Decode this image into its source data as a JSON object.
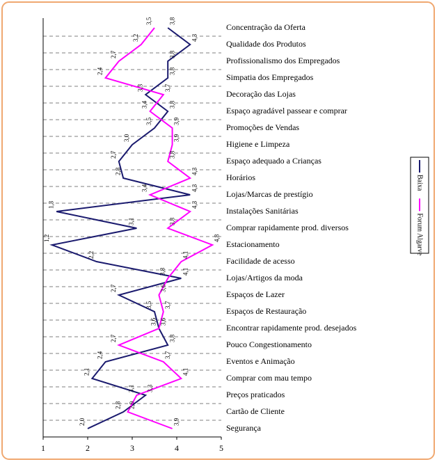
{
  "chart_data": {
    "type": "line",
    "categories": [
      "Concentração da Oferta",
      "Qualidade dos Produtos",
      "Profissionalismo dos Empregados",
      "Simpatia dos Empregados",
      "Decoração das Lojas",
      "Espaço agradável passear e comprar",
      "Promoções de Vendas",
      "Higiene e Limpeza",
      "Espaço adequado a Crianças",
      "Horários",
      "Lojas/Marcas de prestígio",
      "Instalações Sanitárias",
      "Comprar rapidamente prod. diversos",
      "Estacionamento",
      "Facilidade de acesso",
      "Lojas/Artigos da moda",
      "Espaços de Lazer",
      "Espaços de Restauração",
      "Encontrar rapidamente prod. desejados",
      "Pouco Congestionamento",
      "Eventos e Animação",
      "Comprar com mau tempo",
      "Preços praticados",
      "Cartão de Cliente",
      "Segurança"
    ],
    "series": [
      {
        "name": "Baixa",
        "color": "#1a1a6e",
        "values": [
          3.8,
          4.3,
          3.8,
          3.8,
          3.3,
          3.8,
          3.5,
          3.0,
          2.7,
          2.8,
          4.3,
          1.3,
          3.1,
          1.2,
          2.2,
          4.1,
          2.7,
          3.5,
          3.6,
          3.8,
          2.4,
          2.1,
          3.3,
          2.8,
          2.0
        ],
        "value_labels": [
          "3,8",
          "4,3",
          "3,8",
          "3,8",
          "3,3",
          "3,8",
          "3,5",
          "3,0",
          "2,7",
          "2,8",
          "4,3",
          "1,3",
          "3,1",
          "1,2",
          "2,2",
          "4,1",
          "2,7",
          "3,5",
          "3,6",
          "3,8",
          "2,4",
          "2,1",
          "3,3",
          "2,8",
          "2,0"
        ]
      },
      {
        "name": "Forum Algarve",
        "color": "#ff00ff",
        "values": [
          3.5,
          3.2,
          2.7,
          2.4,
          3.7,
          3.4,
          3.9,
          3.9,
          3.8,
          4.3,
          3.4,
          4.3,
          3.8,
          4.8,
          4.1,
          3.8,
          3.6,
          3.7,
          3.6,
          2.7,
          3.7,
          4.1,
          3.1,
          2.9,
          3.9
        ],
        "value_labels": [
          "3,5",
          "3,2",
          "2,7",
          "2,4",
          "3,7",
          "3,4",
          "3,9",
          "3,9",
          "3,8",
          "4,3",
          "3,4",
          "4,3",
          "3,8",
          "4,8",
          "4,1",
          "3,8",
          "3,6",
          "3,7",
          "3,6",
          "2,7",
          "3,7",
          "4,1",
          "3,1",
          "2,9",
          "3,9"
        ]
      }
    ],
    "xlim": [
      1,
      5
    ],
    "xticks": [
      1,
      2,
      3,
      4,
      5
    ],
    "grid": true
  }
}
